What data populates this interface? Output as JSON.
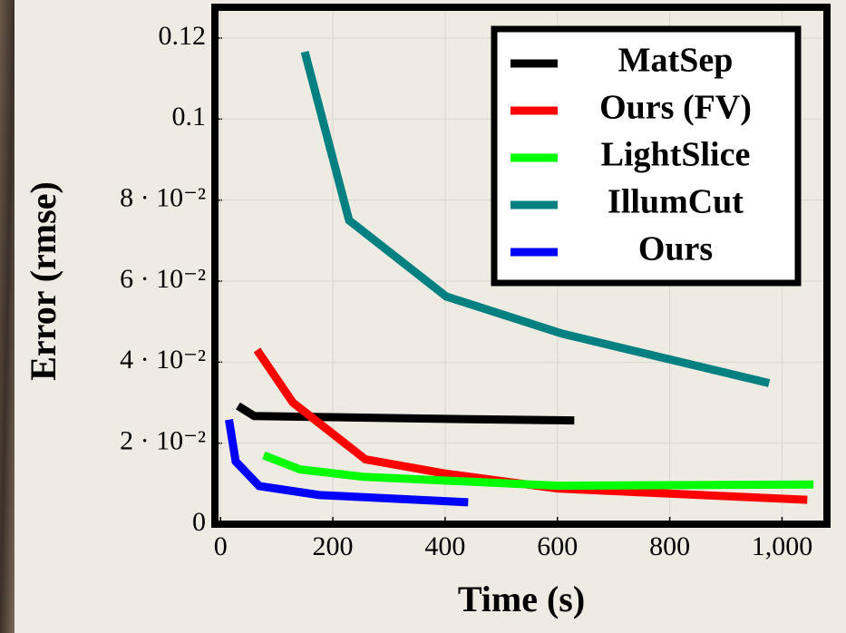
{
  "chart_data": {
    "type": "line",
    "xlabel": "Time (s)",
    "ylabel": "Error (rmse)",
    "xlim": [
      -10,
      1080
    ],
    "ylim": [
      0,
      0.1276
    ],
    "xticks": [
      0,
      200,
      400,
      600,
      800,
      {
        "value": 1000,
        "label": "1,000"
      }
    ],
    "yticks": [
      0,
      {
        "value": 0.02,
        "label": "2 · 10⁻²"
      },
      {
        "value": 0.04,
        "label": "4 · 10⁻²"
      },
      {
        "value": 0.06,
        "label": "6 · 10⁻²"
      },
      {
        "value": 0.08,
        "label": "8 · 10⁻²"
      },
      {
        "value": 0.1,
        "label": "0.1"
      },
      0.12
    ],
    "grid": true,
    "legend": "upper right",
    "series": [
      {
        "name": "MatSep",
        "color": "#000000",
        "x": [
          31,
          60,
          400,
          630
        ],
        "values": [
          0.0292,
          0.0267,
          0.026,
          0.0256
        ]
      },
      {
        "name": "Ours (FV)",
        "color": "#ff0000",
        "x": [
          65,
          129,
          258,
          400,
          600,
          1045
        ],
        "values": [
          0.043,
          0.03,
          0.016,
          0.0125,
          0.0088,
          0.006
        ]
      },
      {
        "name": "LightSlice",
        "color": "#00ff00",
        "x": [
          77,
          142,
          254,
          600,
          1056
        ],
        "values": [
          0.017,
          0.0135,
          0.0117,
          0.0095,
          0.0098
        ]
      },
      {
        "name": "IllumCut",
        "color": "#008080",
        "x": [
          150,
          229,
          402,
          609,
          977
        ],
        "values": [
          0.1166,
          0.075,
          0.0562,
          0.047,
          0.0348
        ]
      },
      {
        "name": "Ours",
        "color": "#0000ff",
        "x": [
          15,
          27,
          69,
          176,
          441
        ],
        "values": [
          0.0258,
          0.0155,
          0.0094,
          0.0072,
          0.0054
        ]
      }
    ]
  }
}
